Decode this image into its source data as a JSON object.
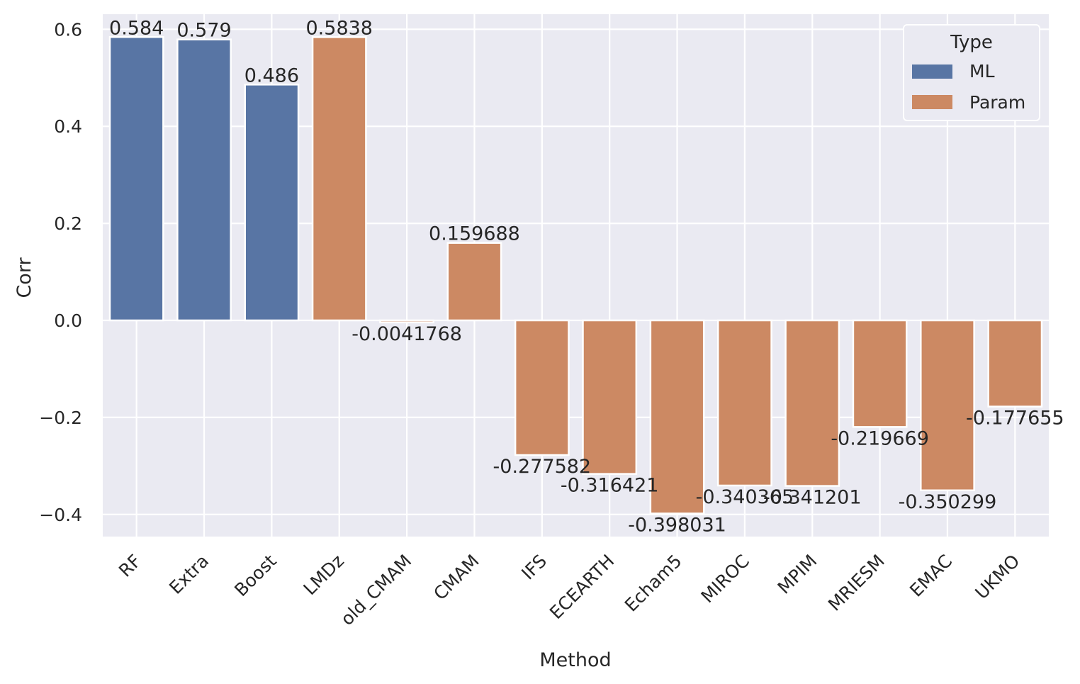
{
  "chart_data": {
    "type": "bar",
    "categories": [
      "RF",
      "Extra",
      "Boost",
      "LMDz",
      "old_CMAM",
      "CMAM",
      "IFS",
      "ECEARTH",
      "Echam5",
      "MIROC",
      "MPIM",
      "MRIESM",
      "EMAC",
      "UKMO"
    ],
    "types": [
      "ML",
      "ML",
      "ML",
      "Param",
      "Param",
      "Param",
      "Param",
      "Param",
      "Param",
      "Param",
      "Param",
      "Param",
      "Param",
      "Param"
    ],
    "values": [
      0.584,
      0.579,
      0.486,
      0.5838,
      -0.0041768,
      0.159688,
      -0.277582,
      -0.316421,
      -0.398031,
      -0.340365,
      -0.341201,
      -0.219669,
      -0.350299,
      -0.177655
    ],
    "value_labels": [
      "0.584",
      "0.579",
      "0.486",
      "0.5838",
      "-0.0041768",
      "0.159688",
      "-0.277582",
      "-0.316421",
      "-0.398031",
      "-0.340365",
      "-0.341201",
      "-0.219669",
      "-0.350299",
      "-0.177655"
    ],
    "xlabel": "Method",
    "ylabel": "Corr",
    "ylim": [
      -0.445,
      0.63
    ],
    "yticks": [
      -0.4,
      -0.2,
      0.0,
      0.2,
      0.4,
      0.6
    ],
    "ytick_labels": [
      "−0.4",
      "−0.2",
      "0.0",
      "0.2",
      "0.4",
      "0.6"
    ],
    "grid": true,
    "legend": {
      "title": "Type",
      "position": "top-right",
      "entries": [
        {
          "name": "ML",
          "color": "#5875a4"
        },
        {
          "name": "Param",
          "color": "#cc8963"
        }
      ]
    },
    "colors": {
      "ML": "#5875a4",
      "Param": "#cc8963",
      "background": "#eaeaf2",
      "grid": "#ffffff"
    }
  }
}
